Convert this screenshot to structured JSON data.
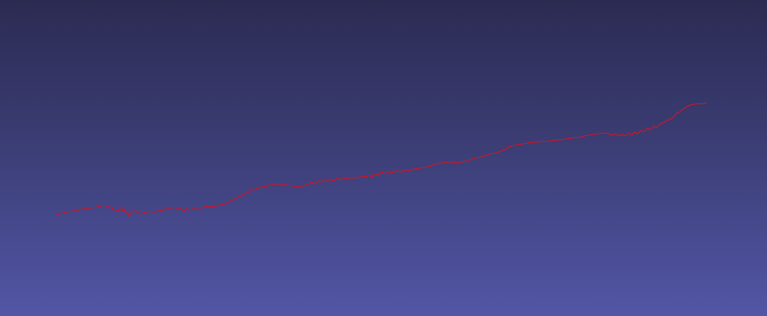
{
  "viewport": {
    "background_top_color": "#2b2b52",
    "background_bottom_color": "#5256a6",
    "trajectory": {
      "stroke_color": "#c0192f"
    }
  }
}
